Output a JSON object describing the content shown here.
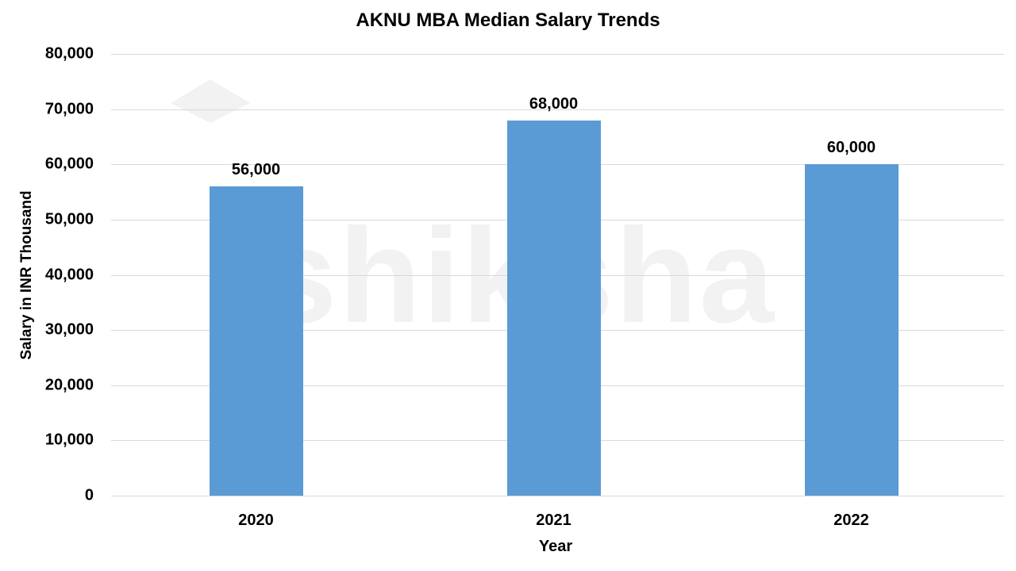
{
  "chart_data": {
    "type": "bar",
    "title": "AKNU MBA Median Salary Trends",
    "xlabel": "Year",
    "ylabel": "Salary in INR Thousand",
    "categories": [
      "2020",
      "2021",
      "2022"
    ],
    "values": [
      56000,
      68000,
      60000
    ],
    "data_labels": [
      "56,000",
      "68,000",
      "60,000"
    ],
    "ylim": [
      0,
      80000
    ],
    "yticks": [
      0,
      10000,
      20000,
      30000,
      40000,
      50000,
      60000,
      70000,
      80000
    ],
    "ytick_labels": [
      "0",
      "10,000",
      "20,000",
      "30,000",
      "40,000",
      "50,000",
      "60,000",
      "70,000",
      "80,000"
    ],
    "grid": true,
    "legend": null,
    "bar_color": "#5b9bd5"
  },
  "watermark": {
    "text": "shiksha"
  }
}
